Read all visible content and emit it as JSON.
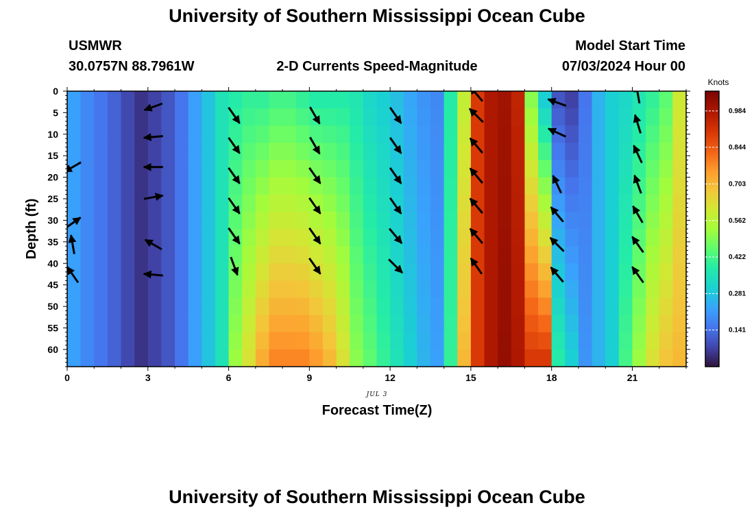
{
  "header": {
    "title": "University of Southern Mississippi Ocean Cube",
    "station": "USMWR",
    "coords": "30.0757N  88.7961W",
    "plot_title": "2-D Currents Speed-Magnitude",
    "model_label": "Model Start Time",
    "model_time": "07/03/2024 Hour 00",
    "footer_title": "University of Southern Mississippi Ocean Cube"
  },
  "chart_data": {
    "type": "heatmap",
    "title": "2-D Currents Speed-Magnitude",
    "xlabel": "Forecast Time(Z)",
    "ylabel": "Depth (ft)",
    "date_label": "JUL 3",
    "xlim": [
      0,
      23
    ],
    "ylim": [
      0,
      64
    ],
    "xticks": [
      "0",
      "3",
      "6",
      "9",
      "12",
      "15",
      "18",
      "21"
    ],
    "yticks": [
      "0",
      "5",
      "10",
      "15",
      "20",
      "25",
      "30",
      "35",
      "40",
      "45",
      "50",
      "55",
      "60"
    ],
    "colorbar": {
      "units": "Knots",
      "ticks": [
        "0.984",
        "0.844",
        "0.703",
        "0.562",
        "0.422",
        "0.281",
        "0.141"
      ],
      "range": [
        0,
        1.06
      ]
    },
    "hours": [
      0,
      0.5,
      1,
      1.5,
      2,
      2.5,
      3,
      3.5,
      4,
      4.5,
      5,
      5.5,
      6,
      6.5,
      7,
      7.5,
      8,
      8.5,
      9,
      9.5,
      10,
      10.5,
      11,
      11.5,
      12,
      12.5,
      13,
      13.5,
      14,
      14.5,
      15,
      15.5,
      16,
      16.5,
      17,
      17.5,
      18,
      18.5,
      19,
      19.5,
      20,
      20.5,
      21,
      21.5,
      22,
      22.5
    ],
    "surface_speed": [
      0.22,
      0.18,
      0.15,
      0.12,
      0.08,
      0.05,
      0.07,
      0.1,
      0.15,
      0.22,
      0.28,
      0.35,
      0.38,
      0.4,
      0.4,
      0.42,
      0.42,
      0.4,
      0.38,
      0.38,
      0.38,
      0.36,
      0.32,
      0.3,
      0.27,
      0.23,
      0.2,
      0.18,
      0.38,
      0.58,
      0.9,
      0.98,
      1.0,
      0.95,
      0.5,
      0.3,
      0.1,
      0.07,
      0.15,
      0.25,
      0.3,
      0.32,
      0.36,
      0.4,
      0.45,
      0.6
    ],
    "bottom_speed": [
      0.22,
      0.18,
      0.15,
      0.12,
      0.08,
      0.05,
      0.07,
      0.1,
      0.15,
      0.22,
      0.28,
      0.35,
      0.52,
      0.62,
      0.72,
      0.78,
      0.78,
      0.78,
      0.75,
      0.7,
      0.62,
      0.5,
      0.45,
      0.4,
      0.35,
      0.3,
      0.25,
      0.22,
      0.4,
      0.7,
      0.9,
      0.98,
      1.02,
      0.98,
      0.9,
      0.9,
      0.38,
      0.3,
      0.2,
      0.25,
      0.3,
      0.42,
      0.52,
      0.62,
      0.68,
      0.7
    ],
    "vectors": [
      {
        "hour": 0,
        "depth": 17,
        "speed": 0.2,
        "dir_deg": 240
      },
      {
        "hour": 0,
        "depth": 30,
        "speed": 0.2,
        "dir_deg": 55
      },
      {
        "hour": 0,
        "depth": 35,
        "speed": 0.2,
        "dir_deg": 350
      },
      {
        "hour": 0,
        "depth": 42,
        "speed": 0.2,
        "dir_deg": 325
      },
      {
        "hour": 3,
        "depth": 3,
        "speed": 0.05,
        "dir_deg": 250
      },
      {
        "hour": 3,
        "depth": 10,
        "speed": 0.05,
        "dir_deg": 265
      },
      {
        "hour": 3,
        "depth": 17,
        "speed": 0.05,
        "dir_deg": 270
      },
      {
        "hour": 3,
        "depth": 24,
        "speed": 0.05,
        "dir_deg": 80
      },
      {
        "hour": 3,
        "depth": 35,
        "speed": 0.05,
        "dir_deg": 300
      },
      {
        "hour": 3,
        "depth": 42,
        "speed": 0.05,
        "dir_deg": 275
      },
      {
        "hour": 6,
        "depth": 5,
        "speed": 0.35,
        "dir_deg": 145
      },
      {
        "hour": 6,
        "depth": 12,
        "speed": 0.35,
        "dir_deg": 145
      },
      {
        "hour": 6,
        "depth": 19,
        "speed": 0.35,
        "dir_deg": 145
      },
      {
        "hour": 6,
        "depth": 26,
        "speed": 0.35,
        "dir_deg": 145
      },
      {
        "hour": 6,
        "depth": 33,
        "speed": 0.35,
        "dir_deg": 145
      },
      {
        "hour": 6,
        "depth": 40,
        "speed": 0.35,
        "dir_deg": 160
      },
      {
        "hour": 9,
        "depth": 5,
        "speed": 0.4,
        "dir_deg": 150
      },
      {
        "hour": 9,
        "depth": 12,
        "speed": 0.4,
        "dir_deg": 150
      },
      {
        "hour": 9,
        "depth": 19,
        "speed": 0.4,
        "dir_deg": 145
      },
      {
        "hour": 9,
        "depth": 26,
        "speed": 0.4,
        "dir_deg": 145
      },
      {
        "hour": 9,
        "depth": 33,
        "speed": 0.4,
        "dir_deg": 145
      },
      {
        "hour": 9,
        "depth": 40,
        "speed": 0.4,
        "dir_deg": 145
      },
      {
        "hour": 12,
        "depth": 5,
        "speed": 0.3,
        "dir_deg": 145
      },
      {
        "hour": 12,
        "depth": 12,
        "speed": 0.3,
        "dir_deg": 145
      },
      {
        "hour": 12,
        "depth": 19,
        "speed": 0.3,
        "dir_deg": 145
      },
      {
        "hour": 12,
        "depth": 26,
        "speed": 0.3,
        "dir_deg": 145
      },
      {
        "hour": 12,
        "depth": 33,
        "speed": 0.3,
        "dir_deg": 140
      },
      {
        "hour": 12,
        "depth": 40,
        "speed": 0.3,
        "dir_deg": 135
      },
      {
        "hour": 15,
        "depth": 0,
        "speed": 0.95,
        "dir_deg": 320
      },
      {
        "hour": 15,
        "depth": 5,
        "speed": 0.95,
        "dir_deg": 315
      },
      {
        "hour": 15,
        "depth": 12,
        "speed": 0.95,
        "dir_deg": 320
      },
      {
        "hour": 15,
        "depth": 19,
        "speed": 0.95,
        "dir_deg": 320
      },
      {
        "hour": 15,
        "depth": 26,
        "speed": 0.95,
        "dir_deg": 320
      },
      {
        "hour": 15,
        "depth": 33,
        "speed": 0.95,
        "dir_deg": 320
      },
      {
        "hour": 15,
        "depth": 40,
        "speed": 0.95,
        "dir_deg": 325
      },
      {
        "hour": 18,
        "depth": 2,
        "speed": 0.08,
        "dir_deg": 290
      },
      {
        "hour": 18,
        "depth": 9,
        "speed": 0.08,
        "dir_deg": 295
      },
      {
        "hour": 18,
        "depth": 21,
        "speed": 0.15,
        "dir_deg": 335
      },
      {
        "hour": 18,
        "depth": 28,
        "speed": 0.2,
        "dir_deg": 320
      },
      {
        "hour": 18,
        "depth": 35,
        "speed": 0.2,
        "dir_deg": 315
      },
      {
        "hour": 18,
        "depth": 42,
        "speed": 0.2,
        "dir_deg": 320
      },
      {
        "hour": 21,
        "depth": 0,
        "speed": 0.45,
        "dir_deg": 350
      },
      {
        "hour": 21,
        "depth": 7,
        "speed": 0.45,
        "dir_deg": 343
      },
      {
        "hour": 21,
        "depth": 14,
        "speed": 0.45,
        "dir_deg": 335
      },
      {
        "hour": 21,
        "depth": 21,
        "speed": 0.45,
        "dir_deg": 340
      },
      {
        "hour": 21,
        "depth": 28,
        "speed": 0.45,
        "dir_deg": 330
      },
      {
        "hour": 21,
        "depth": 35,
        "speed": 0.45,
        "dir_deg": 325
      },
      {
        "hour": 21,
        "depth": 42,
        "speed": 0.45,
        "dir_deg": 325
      }
    ]
  }
}
